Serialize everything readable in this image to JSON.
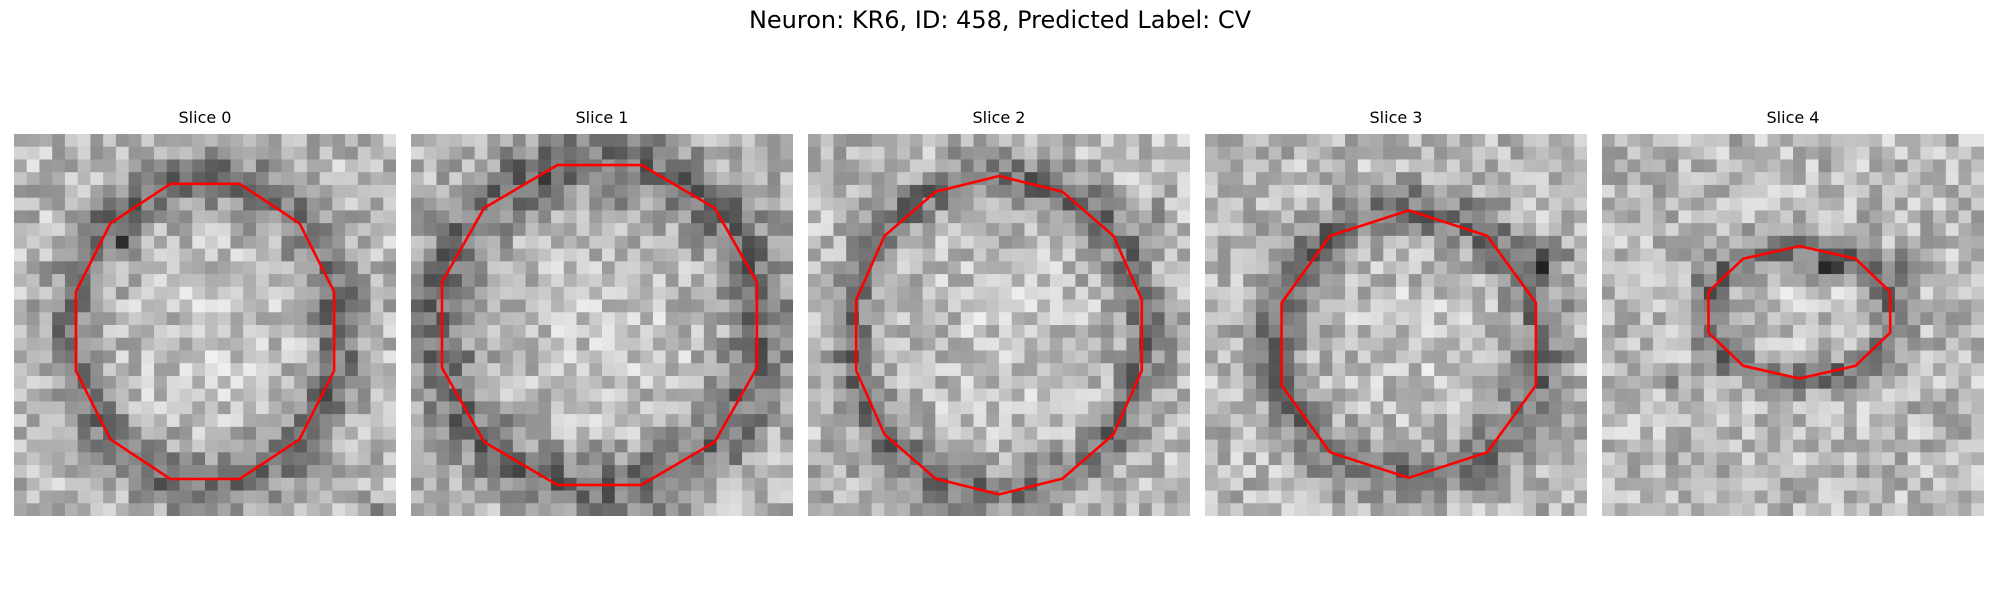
{
  "figure": {
    "title": "Neuron: KR6, ID: 458, Predicted Label: CV"
  },
  "colors": {
    "contour": "#ff0000",
    "background": "#ffffff"
  },
  "panels": [
    {
      "title": "Slice 0"
    },
    {
      "title": "Slice 1"
    },
    {
      "title": "Slice 2"
    },
    {
      "title": "Slice 3"
    },
    {
      "title": "Slice 4"
    }
  ]
}
